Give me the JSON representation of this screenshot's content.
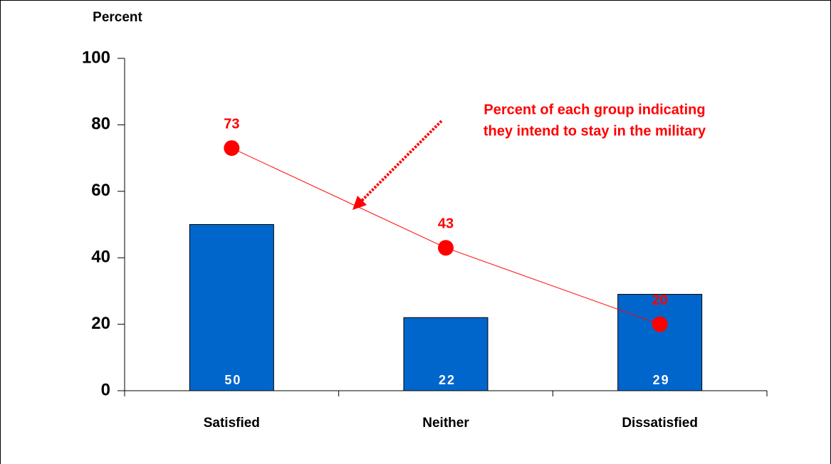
{
  "chart_data": {
    "type": "bar-line",
    "ylabel": "Percent",
    "categories": [
      "Satisfied",
      "Neither",
      "Dissatisfied"
    ],
    "series": [
      {
        "type": "bar",
        "color": "#0066cc",
        "values": [
          50,
          22,
          29
        ]
      },
      {
        "type": "line",
        "color": "#ff0000",
        "values": [
          73,
          43,
          20
        ]
      }
    ],
    "annotation": [
      "Percent of each group indicating",
      "they intend to stay in  the military"
    ],
    "ylim": [
      0,
      100
    ],
    "yticks": [
      0,
      20,
      40,
      60,
      80,
      100
    ]
  }
}
